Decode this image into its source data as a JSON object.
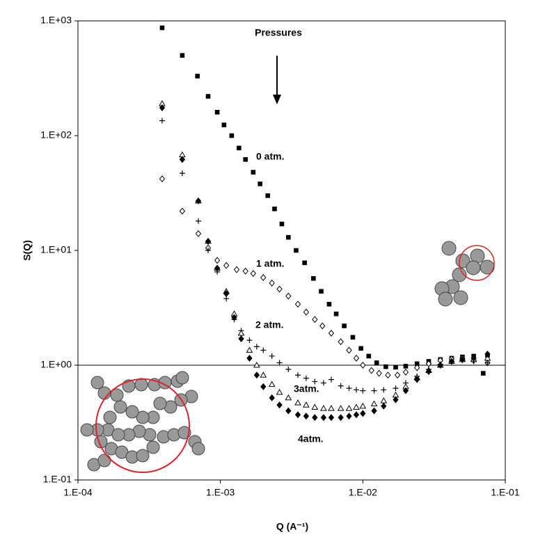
{
  "chart_data": {
    "type": "scatter",
    "log_x": true,
    "log_y": true,
    "x_label": "Q (A⁻¹)",
    "y_label": "S(Q)",
    "annotation": "Pressures",
    "reference_line": 1,
    "xlim": [
      0.0001,
      0.1
    ],
    "xticks": [
      {
        "value": 0.0001,
        "label": "1.E-04"
      },
      {
        "value": 0.001,
        "label": "1.E-03"
      },
      {
        "value": 0.01,
        "label": "1.E-02"
      },
      {
        "value": 0.1,
        "label": "1.E-01"
      }
    ],
    "ylim": [
      0.1,
      1000
    ],
    "yticks": [
      {
        "value": 0.1,
        "label": "1.E-01"
      },
      {
        "value": 1,
        "label": "1.E+00"
      },
      {
        "value": 10,
        "label": "1.E+01"
      },
      {
        "value": 100,
        "label": "1.E+02"
      },
      {
        "value": 1000,
        "label": "1.E+03"
      }
    ],
    "series": [
      {
        "name": "0 atm.",
        "marker": "square",
        "color": "#000000",
        "x": [
          0.00039,
          0.00054,
          0.00069,
          0.00082,
          0.00095,
          0.00106,
          0.0012,
          0.00135,
          0.0015,
          0.0017,
          0.0019,
          0.00215,
          0.0024,
          0.0027,
          0.003,
          0.0034,
          0.0039,
          0.0045,
          0.0051,
          0.0058,
          0.0065,
          0.0074,
          0.0085,
          0.0097,
          0.011,
          0.0125,
          0.0145,
          0.017,
          0.02,
          0.024,
          0.029,
          0.035,
          0.042,
          0.05,
          0.06,
          0.07,
          0.075
        ],
        "values": [
          870,
          500,
          330,
          220,
          160,
          124,
          100,
          78,
          62,
          48,
          38,
          30,
          23,
          17,
          13,
          10,
          7.8,
          5.7,
          4.4,
          3.4,
          2.8,
          2.2,
          1.75,
          1.4,
          1.2,
          1.05,
          0.97,
          0.96,
          0.98,
          1.03,
          1.08,
          1.12,
          1.15,
          1.18,
          1.2,
          0.85,
          1.22
        ]
      },
      {
        "name": "1 atm.",
        "marker": "open-diamond",
        "color": "#000000",
        "x": [
          0.00039,
          0.00054,
          0.0007,
          0.00082,
          0.00095,
          0.0011,
          0.0013,
          0.0015,
          0.0017,
          0.002,
          0.0023,
          0.0026,
          0.003,
          0.0035,
          0.004,
          0.0046,
          0.0052,
          0.006,
          0.007,
          0.008,
          0.009,
          0.01,
          0.0115,
          0.013,
          0.015,
          0.0175,
          0.02,
          0.024,
          0.029,
          0.035,
          0.042,
          0.05,
          0.06,
          0.075
        ],
        "values": [
          42,
          22,
          14,
          10.5,
          8.2,
          7.4,
          6.8,
          6.6,
          6.3,
          5.8,
          5.2,
          4.6,
          4,
          3.4,
          2.9,
          2.5,
          2.2,
          1.9,
          1.6,
          1.35,
          1.15,
          1,
          0.9,
          0.85,
          0.82,
          0.82,
          0.87,
          0.95,
          1.03,
          1.1,
          1.13,
          1.15,
          1.1,
          1.05
        ]
      },
      {
        "name": "2 atm.",
        "marker": "plus",
        "color": "#000000",
        "x": [
          0.00039,
          0.00054,
          0.0007,
          0.00082,
          0.00095,
          0.0011,
          0.00125,
          0.0014,
          0.0016,
          0.0018,
          0.002,
          0.0023,
          0.0026,
          0.003,
          0.0035,
          0.004,
          0.0046,
          0.0053,
          0.006,
          0.007,
          0.008,
          0.009,
          0.01,
          0.012,
          0.014,
          0.017,
          0.02,
          0.024,
          0.029,
          0.035,
          0.042,
          0.05,
          0.06,
          0.075
        ],
        "values": [
          135,
          47,
          18,
          10,
          6.5,
          3.8,
          2.5,
          2,
          1.65,
          1.45,
          1.35,
          1.2,
          1.05,
          0.92,
          0.82,
          0.77,
          0.72,
          0.7,
          0.75,
          0.66,
          0.63,
          0.61,
          0.6,
          0.6,
          0.61,
          0.63,
          0.7,
          0.8,
          0.92,
          1.02,
          1.08,
          1.1,
          1.08,
          1.05
        ]
      },
      {
        "name": "3atm.",
        "marker": "open-triangle",
        "color": "#000000",
        "x": [
          0.00039,
          0.00054,
          0.0007,
          0.00082,
          0.00095,
          0.0011,
          0.00125,
          0.0014,
          0.0016,
          0.0018,
          0.002,
          0.0023,
          0.0026,
          0.003,
          0.0035,
          0.004,
          0.0046,
          0.0053,
          0.006,
          0.007,
          0.008,
          0.009,
          0.01,
          0.012,
          0.014,
          0.017,
          0.02,
          0.024,
          0.029,
          0.035,
          0.042,
          0.05,
          0.06,
          0.075
        ],
        "values": [
          190,
          68,
          27,
          12,
          7,
          4.4,
          2.8,
          1.9,
          1.35,
          1,
          0.82,
          0.68,
          0.58,
          0.52,
          0.47,
          0.45,
          0.43,
          0.42,
          0.42,
          0.42,
          0.42,
          0.43,
          0.44,
          0.46,
          0.49,
          0.55,
          0.65,
          0.78,
          0.9,
          1,
          1.08,
          1.12,
          1.12,
          1.15
        ]
      },
      {
        "name": "4atm.",
        "marker": "diamond",
        "color": "#000000",
        "x": [
          0.00039,
          0.00054,
          0.0007,
          0.00082,
          0.00095,
          0.0011,
          0.00125,
          0.0014,
          0.0016,
          0.0018,
          0.002,
          0.0023,
          0.0026,
          0.003,
          0.0035,
          0.004,
          0.0046,
          0.0053,
          0.006,
          0.007,
          0.008,
          0.009,
          0.01,
          0.012,
          0.014,
          0.017,
          0.02,
          0.024,
          0.029,
          0.035,
          0.042,
          0.05,
          0.06,
          0.075
        ],
        "values": [
          175,
          62,
          27,
          12,
          7,
          4.2,
          2.6,
          1.7,
          1.15,
          0.82,
          0.65,
          0.52,
          0.45,
          0.4,
          0.37,
          0.36,
          0.35,
          0.35,
          0.35,
          0.35,
          0.36,
          0.37,
          0.38,
          0.4,
          0.44,
          0.5,
          0.6,
          0.75,
          0.88,
          1,
          1.08,
          1.12,
          1.15,
          1.25
        ]
      }
    ]
  }
}
